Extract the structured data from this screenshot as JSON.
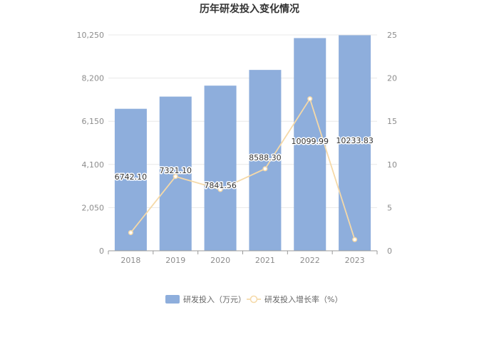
{
  "chart_data": {
    "type": "bar",
    "title": "历年研发投入变化情况",
    "categories": [
      "2018",
      "2019",
      "2020",
      "2021",
      "2022",
      "2023"
    ],
    "series": [
      {
        "name": "研发投入（万元）",
        "type": "bar",
        "axis": "left",
        "values": [
          6742.1,
          7321.1,
          7841.56,
          8588.3,
          10099.99,
          10233.83
        ],
        "value_labels": [
          "6742.10",
          "7321.10",
          "7841.56",
          "8588.30",
          "10099.99",
          "10233.83"
        ],
        "color": "#8eaedc"
      },
      {
        "name": "研发投入增长率（%）",
        "type": "line",
        "axis": "right",
        "values": [
          2.1,
          8.6,
          7.1,
          9.5,
          17.6,
          1.3
        ],
        "color": "#f5d9a8"
      }
    ],
    "y_left": {
      "ylim": [
        0,
        10250
      ],
      "ticks": [
        "0",
        "2,050",
        "4,100",
        "6,150",
        "8,200",
        "10,250"
      ]
    },
    "y_right": {
      "ylim": [
        0,
        25
      ],
      "ticks": [
        "0",
        "5",
        "10",
        "15",
        "20",
        "25"
      ]
    },
    "grid": true,
    "legend_position": "bottom-center"
  }
}
